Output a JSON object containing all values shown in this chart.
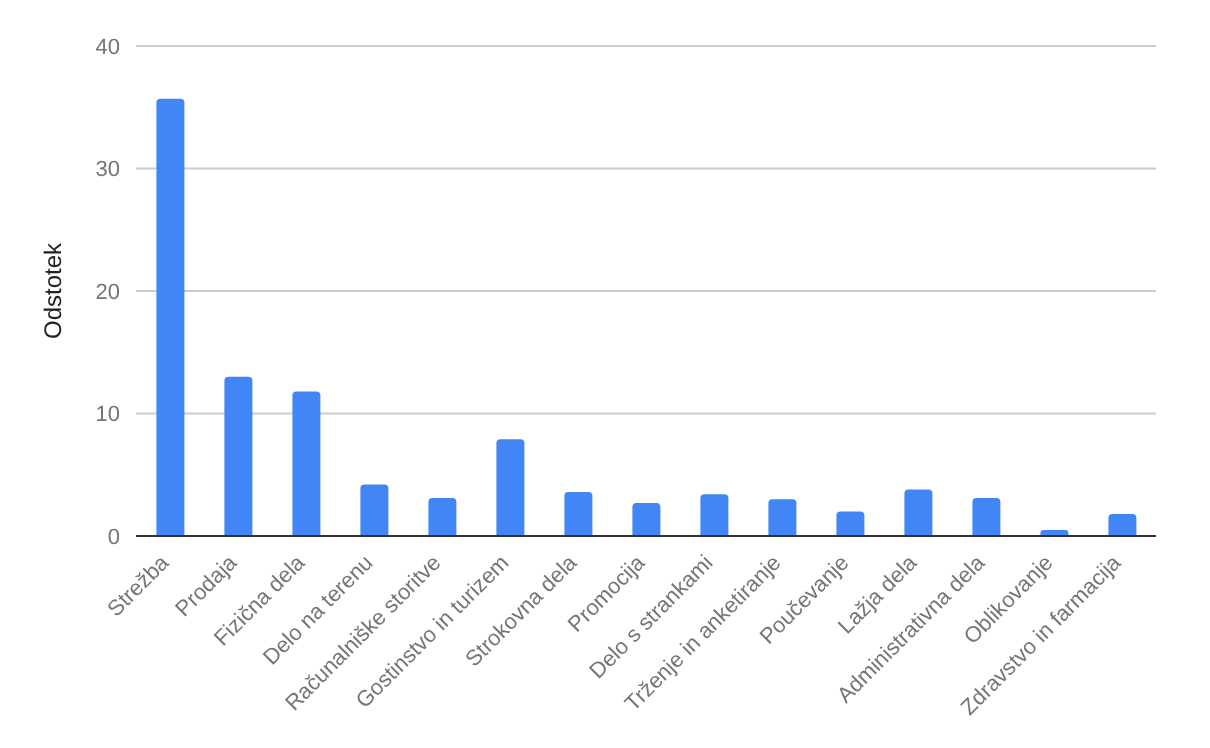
{
  "chart_data": {
    "type": "bar",
    "ylabel": "Odstotek",
    "categories": [
      "Strežba",
      "Prodaja",
      "Fizična dela",
      "Delo na terenu",
      "Računalniške storitve",
      "Gostinstvo in turizem",
      "Strokovna dela",
      "Promocija",
      "Delo s strankami",
      "Trženje in anketiranje",
      "Poučevanje",
      "Lažja dela",
      "Administrativna dela",
      "Oblikovanje",
      "Zdravstvo in farmacija"
    ],
    "values": [
      35.7,
      13.0,
      11.8,
      4.2,
      3.1,
      7.9,
      3.6,
      2.7,
      3.4,
      3.0,
      2.0,
      3.8,
      3.1,
      0.5,
      1.8
    ],
    "color": "#4285f4",
    "ylim": [
      0,
      40
    ],
    "yticks": [
      0,
      10,
      20,
      30,
      40
    ],
    "grid": "y"
  }
}
